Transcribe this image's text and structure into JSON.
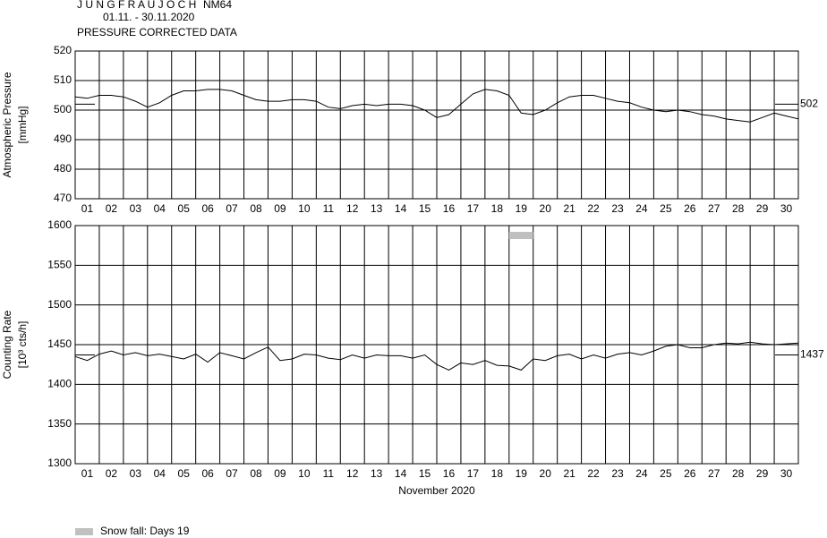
{
  "header": {
    "title": "J U N G F R A U J O C H",
    "station": "NM64",
    "period": "01.11. - 30.11.2020",
    "subtitle": "PRESSURE CORRECTED DATA"
  },
  "legend": {
    "label": "Snow fall: Days 19",
    "color": "#c0c0c0"
  },
  "chart_data": [
    {
      "type": "line",
      "ylabel": "Atmospheric Pressure",
      "yunit": "[mmHg]",
      "categories": [
        "01",
        "02",
        "03",
        "04",
        "05",
        "06",
        "07",
        "08",
        "09",
        "10",
        "11",
        "12",
        "13",
        "14",
        "15",
        "16",
        "17",
        "18",
        "19",
        "20",
        "21",
        "22",
        "23",
        "24",
        "25",
        "26",
        "27",
        "28",
        "29",
        "30"
      ],
      "xlim": [
        1,
        31
      ],
      "ylim": [
        470,
        520
      ],
      "yticks": [
        470,
        480,
        490,
        500,
        510,
        520
      ],
      "grid": true,
      "reference": 502,
      "x": [
        1,
        1.5,
        2,
        2.5,
        3,
        3.5,
        4,
        4.5,
        5,
        5.5,
        6,
        6.5,
        7,
        7.5,
        8,
        8.5,
        9,
        9.5,
        10,
        10.5,
        11,
        11.5,
        12,
        12.5,
        13,
        13.5,
        14,
        14.5,
        15,
        15.5,
        16,
        16.5,
        17,
        17.5,
        18,
        18.5,
        19,
        19.5,
        20,
        20.5,
        21,
        21.5,
        22,
        22.5,
        23,
        23.5,
        24,
        24.5,
        25,
        25.5,
        26,
        26.5,
        27,
        27.5,
        28,
        28.5,
        29,
        29.5,
        30,
        30.5,
        31
      ],
      "series": [
        {
          "name": "Pressure",
          "color": "#000000",
          "values": [
            504.5,
            504,
            505,
            505,
            504.5,
            503,
            501,
            502.5,
            505,
            506.5,
            506.5,
            507,
            507,
            506.5,
            505,
            503.5,
            503,
            503,
            503.5,
            503.5,
            503,
            501,
            500.5,
            501.5,
            502,
            501.5,
            502,
            502,
            501.5,
            500,
            497.5,
            498.5,
            502,
            505.5,
            507,
            506.5,
            505,
            499,
            498.5,
            500,
            502.5,
            504.5,
            505,
            505,
            504,
            503,
            502.5,
            501,
            500,
            499.5,
            500,
            499.5,
            498.5,
            498,
            497,
            496.5,
            496,
            497.5,
            499,
            498,
            497
          ]
        }
      ]
    },
    {
      "type": "line",
      "ylabel": "Counting Rate",
      "yunit": "[10³ cts/h]",
      "xlabel": "November 2020",
      "categories": [
        "01",
        "02",
        "03",
        "04",
        "05",
        "06",
        "07",
        "08",
        "09",
        "10",
        "11",
        "12",
        "13",
        "14",
        "15",
        "16",
        "17",
        "18",
        "19",
        "20",
        "21",
        "22",
        "23",
        "24",
        "25",
        "26",
        "27",
        "28",
        "29",
        "30"
      ],
      "xlim": [
        1,
        31
      ],
      "ylim": [
        1300,
        1600
      ],
      "yticks": [
        1300,
        1350,
        1400,
        1450,
        1500,
        1550,
        1600
      ],
      "grid": true,
      "reference": 1437,
      "snow_days": [
        19
      ],
      "x": [
        1,
        1.5,
        2,
        2.5,
        3,
        3.5,
        4,
        4.5,
        5,
        5.5,
        6,
        6.5,
        7,
        7.5,
        8,
        8.5,
        9,
        9.5,
        10,
        10.5,
        11,
        11.5,
        12,
        12.5,
        13,
        13.5,
        14,
        14.5,
        15,
        15.5,
        16,
        16.5,
        17,
        17.5,
        18,
        18.5,
        19,
        19.5,
        20,
        20.5,
        21,
        21.5,
        22,
        22.5,
        23,
        23.5,
        24,
        24.5,
        25,
        25.5,
        26,
        26.5,
        27,
        27.5,
        28,
        28.5,
        29,
        29.5,
        30,
        30.5,
        31
      ],
      "series": [
        {
          "name": "Counting Rate",
          "color": "#000000",
          "values": [
            1435,
            1430,
            1438,
            1442,
            1437,
            1440,
            1436,
            1438,
            1435,
            1432,
            1438,
            1428,
            1440,
            1436,
            1432,
            1440,
            1447,
            1430,
            1432,
            1438,
            1437,
            1433,
            1431,
            1437,
            1433,
            1437,
            1436,
            1436,
            1433,
            1437,
            1425,
            1418,
            1427,
            1425,
            1430,
            1424,
            1423,
            1418,
            1432,
            1430,
            1436,
            1438,
            1432,
            1437,
            1433,
            1438,
            1440,
            1437,
            1442,
            1448,
            1450,
            1446,
            1446,
            1450,
            1452,
            1451,
            1453,
            1451,
            1450,
            1451,
            1452
          ]
        }
      ]
    }
  ]
}
